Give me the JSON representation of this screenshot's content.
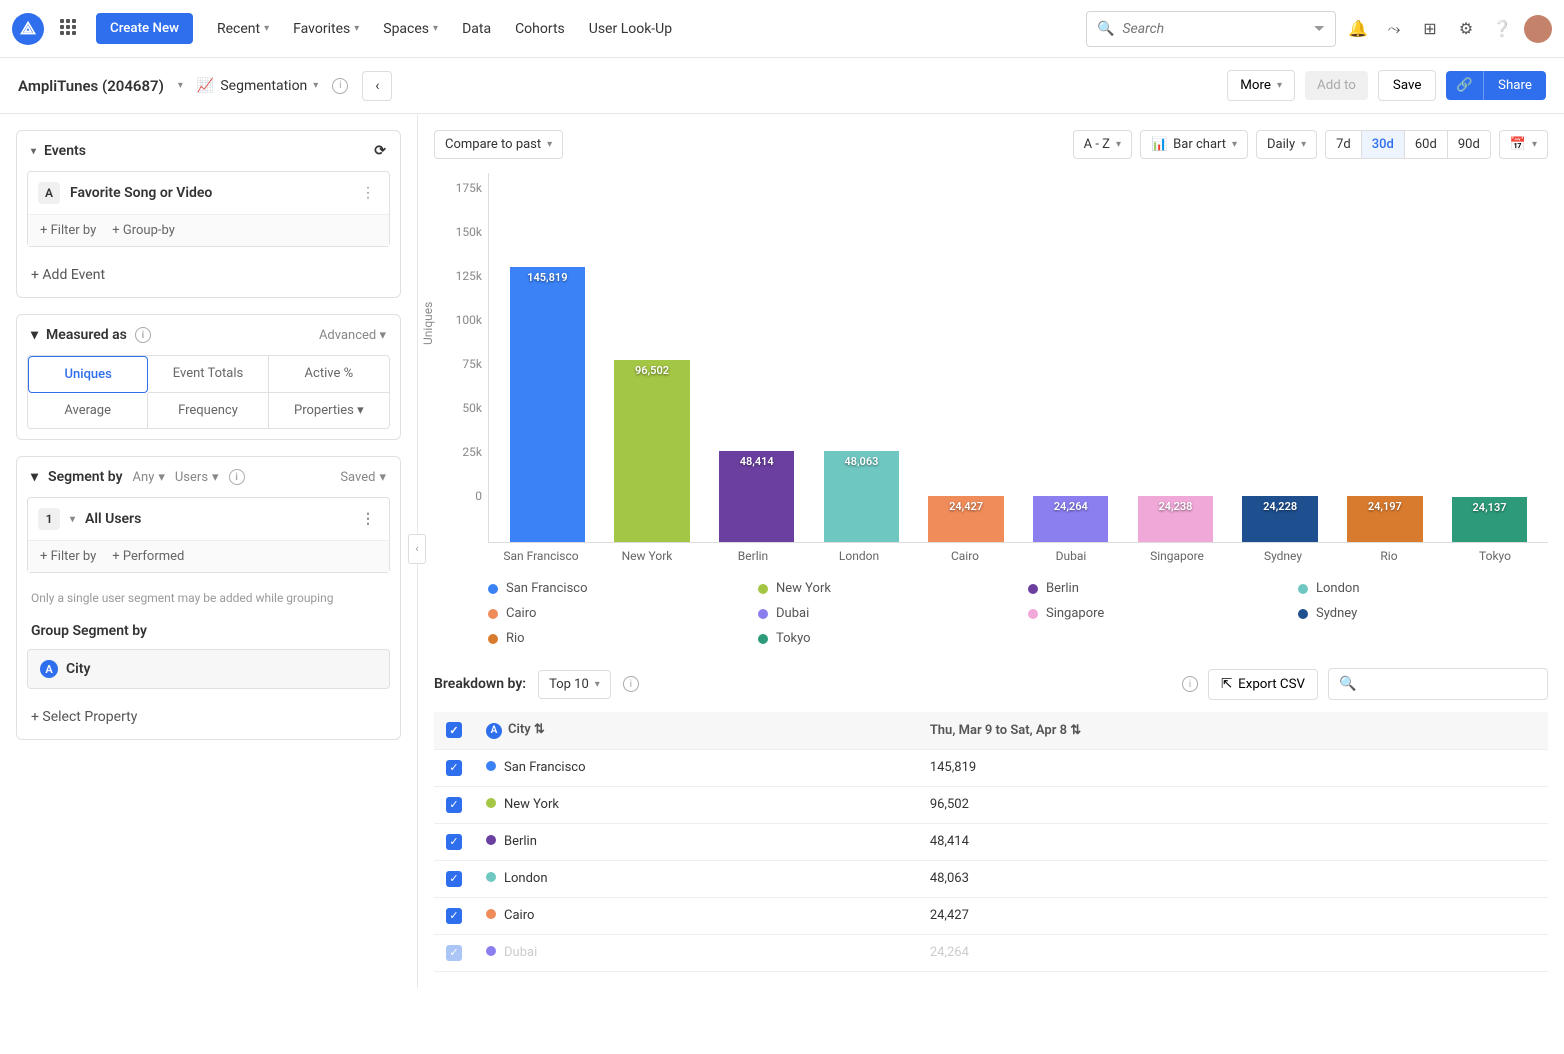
{
  "nav": {
    "create": "Create New",
    "links": [
      "Recent",
      "Favorites",
      "Spaces",
      "Data",
      "Cohorts",
      "User Look-Up"
    ],
    "links_have_dropdown": [
      true,
      true,
      true,
      false,
      false,
      false
    ],
    "search_placeholder": "Search"
  },
  "subhead": {
    "project": "AmpliTunes (204687)",
    "mode": "Segmentation",
    "more": "More",
    "add_to": "Add to",
    "save": "Save",
    "share": "Share"
  },
  "events_panel": {
    "title": "Events",
    "badge": "A",
    "event_name": "Favorite Song or Video",
    "filter_by": "+ Filter by",
    "group_by": "+ Group-by",
    "add_event": "+ Add Event"
  },
  "measured_panel": {
    "title": "Measured as",
    "advanced": "Advanced",
    "cells": [
      "Uniques",
      "Event Totals",
      "Active %",
      "Average",
      "Frequency",
      "Properties"
    ],
    "active_index": 0
  },
  "segment_panel": {
    "title": "Segment by",
    "any": "Any",
    "users": "Users",
    "saved": "Saved",
    "num": "1",
    "all_users": "All Users",
    "filter_by": "+ Filter by",
    "performed": "+ Performed",
    "note": "Only a single user segment may be added while grouping",
    "group_segment": "Group Segment by",
    "city": "City",
    "select_property": "+ Select Property"
  },
  "toolbar": {
    "compare": "Compare to past",
    "sort": "A - Z",
    "chart_type": "Bar chart",
    "interval": "Daily",
    "ranges": [
      "7d",
      "30d",
      "60d",
      "90d"
    ],
    "active_range": "30d"
  },
  "chart": {
    "type": "bar",
    "y_label": "Uniques",
    "y_ticks": [
      "175k",
      "150k",
      "125k",
      "100k",
      "75k",
      "50k",
      "25k",
      "0"
    ],
    "y_max": 175000,
    "categories": [
      "San Francisco",
      "New York",
      "Berlin",
      "London",
      "Cairo",
      "Dubai",
      "Singapore",
      "Sydney",
      "Rio",
      "Tokyo"
    ],
    "values": [
      145819,
      96502,
      48414,
      48063,
      24427,
      24264,
      24238,
      24228,
      24197,
      24137
    ],
    "value_labels": [
      "145,819",
      "96,502",
      "48,414",
      "48,063",
      "24,427",
      "24,264",
      "24,238",
      "24,228",
      "24,197",
      "24,137"
    ],
    "colors": [
      "#3b82f6",
      "#a3c644",
      "#6b3fa0",
      "#6fc7c1",
      "#f08c5a",
      "#8b7ff0",
      "#f0a8d8",
      "#1e4f8f",
      "#d97b2e",
      "#2d9b7a"
    ],
    "background_color": "#ffffff"
  },
  "breakdown": {
    "label": "Breakdown by:",
    "top": "Top 10",
    "export": "Export CSV",
    "col_city": "City",
    "col_date": "Thu, Mar 9 to Sat, Apr 8",
    "rows": [
      {
        "city": "San Francisco",
        "value": "145,819",
        "color": "#3b82f6",
        "dim": false
      },
      {
        "city": "New York",
        "value": "96,502",
        "color": "#a3c644",
        "dim": false
      },
      {
        "city": "Berlin",
        "value": "48,414",
        "color": "#6b3fa0",
        "dim": false
      },
      {
        "city": "London",
        "value": "48,063",
        "color": "#6fc7c1",
        "dim": false
      },
      {
        "city": "Cairo",
        "value": "24,427",
        "color": "#f08c5a",
        "dim": false
      },
      {
        "city": "Dubai",
        "value": "24,264",
        "color": "#8b7ff0",
        "dim": true
      }
    ]
  }
}
